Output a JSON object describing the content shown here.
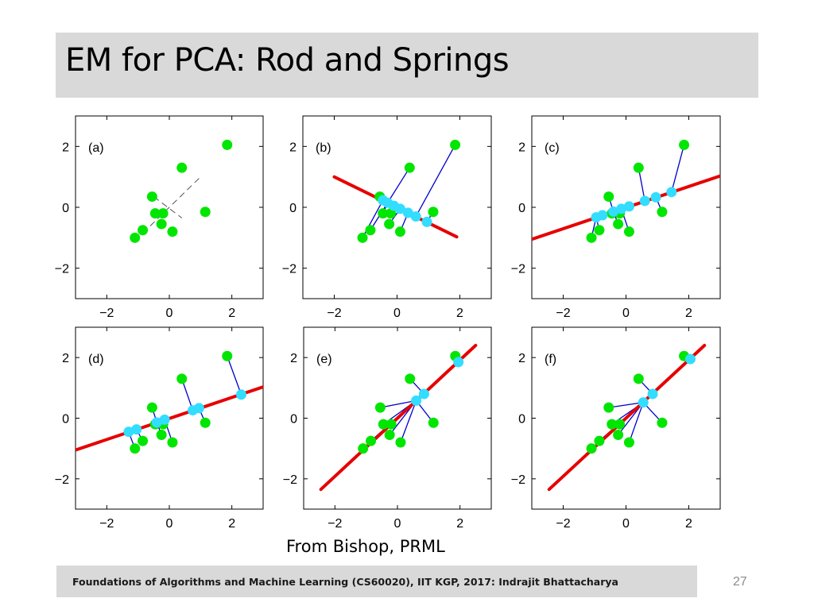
{
  "slide": {
    "title": "EM for PCA: Rod and Springs",
    "caption": "From Bishop, PRML",
    "footer": "Foundations of Algorithms and Machine Learning (CS60020), IIT KGP, 2017: Indrajit Bhattacharya",
    "page_number": "27"
  },
  "colors": {
    "data_point": "#00e600",
    "projection": "#33ddff",
    "rod": "#e60000",
    "spring": "#0000cc",
    "axis": "#000000"
  },
  "chart_data": [
    {
      "type": "scatter",
      "label": "(a)",
      "xlim": [
        -3,
        3
      ],
      "ylim": [
        -3,
        3
      ],
      "xticks": [
        -2,
        0,
        2
      ],
      "yticks": [
        -2,
        0,
        2
      ],
      "points": [
        [
          -1.1,
          -1
        ],
        [
          -0.85,
          -0.75
        ],
        [
          -0.55,
          0.35
        ],
        [
          -0.45,
          -0.2
        ],
        [
          -0.2,
          -0.2
        ],
        [
          -0.25,
          -0.55
        ],
        [
          0.1,
          -0.8
        ],
        [
          0.4,
          1.3
        ],
        [
          1.15,
          -0.15
        ],
        [
          1.85,
          2.05
        ]
      ],
      "dashed_lines": [
        [
          [
            -0.85,
            -0.85
          ],
          [
            0.95,
            0.95
          ]
        ],
        [
          [
            -0.5,
            0.35
          ],
          [
            0.4,
            -0.35
          ]
        ]
      ],
      "rod": null,
      "projections": []
    },
    {
      "type": "scatter",
      "label": "(b)",
      "xlim": [
        -3,
        3
      ],
      "ylim": [
        -3,
        3
      ],
      "xticks": [
        -2,
        0,
        2
      ],
      "yticks": [
        -2,
        0,
        2
      ],
      "points": [
        [
          -1.1,
          -1
        ],
        [
          -0.85,
          -0.75
        ],
        [
          -0.55,
          0.35
        ],
        [
          -0.45,
          -0.2
        ],
        [
          -0.2,
          -0.2
        ],
        [
          -0.25,
          -0.55
        ],
        [
          0.1,
          -0.8
        ],
        [
          0.4,
          1.3
        ],
        [
          1.15,
          -0.15
        ],
        [
          1.85,
          2.05
        ]
      ],
      "dashed_lines": [],
      "rod": [
        [
          -2,
          1
        ],
        [
          1.9,
          -0.97
        ]
      ],
      "projections": [
        [
          -0.45,
          0.23
        ],
        [
          -0.3,
          0.15
        ],
        [
          -0.1,
          0.05
        ],
        [
          0.1,
          -0.05
        ],
        [
          0.35,
          -0.18
        ],
        [
          0.6,
          -0.3
        ],
        [
          0.95,
          -0.48
        ]
      ]
    },
    {
      "type": "scatter",
      "label": "(c)",
      "xlim": [
        -3,
        3
      ],
      "ylim": [
        -3,
        3
      ],
      "xticks": [
        -2,
        0,
        2
      ],
      "yticks": [
        -2,
        0,
        2
      ],
      "points": [
        [
          -1.1,
          -1
        ],
        [
          -0.85,
          -0.75
        ],
        [
          -0.55,
          0.35
        ],
        [
          -0.45,
          -0.2
        ],
        [
          -0.2,
          -0.2
        ],
        [
          -0.25,
          -0.55
        ],
        [
          0.1,
          -0.8
        ],
        [
          0.4,
          1.3
        ],
        [
          1.15,
          -0.15
        ],
        [
          1.85,
          2.05
        ]
      ],
      "dashed_lines": [],
      "rod": [
        [
          -3,
          -1.05
        ],
        [
          3,
          1.03
        ]
      ],
      "projections": [
        [
          -0.95,
          -0.33
        ],
        [
          -0.75,
          -0.26
        ],
        [
          -0.4,
          -0.14
        ],
        [
          -0.15,
          -0.05
        ],
        [
          0.1,
          0.03
        ],
        [
          0.6,
          0.21
        ],
        [
          0.95,
          0.33
        ],
        [
          1.45,
          0.5
        ]
      ]
    },
    {
      "type": "scatter",
      "label": "(d)",
      "xlim": [
        -3,
        3
      ],
      "ylim": [
        -3,
        3
      ],
      "xticks": [
        -2,
        0,
        2
      ],
      "yticks": [
        -2,
        0,
        2
      ],
      "points": [
        [
          -1.1,
          -1
        ],
        [
          -0.85,
          -0.75
        ],
        [
          -0.55,
          0.35
        ],
        [
          -0.45,
          -0.2
        ],
        [
          -0.2,
          -0.2
        ],
        [
          -0.25,
          -0.55
        ],
        [
          0.1,
          -0.8
        ],
        [
          0.4,
          1.3
        ],
        [
          1.15,
          -0.15
        ],
        [
          1.85,
          2.05
        ]
      ],
      "dashed_lines": [],
      "rod": [
        [
          -3,
          -1.05
        ],
        [
          3,
          1.03
        ]
      ],
      "projections": [
        [
          -1.3,
          -0.45
        ],
        [
          -1.05,
          -0.37
        ],
        [
          -0.4,
          -0.14
        ],
        [
          -0.15,
          -0.05
        ],
        [
          0.75,
          0.26
        ],
        [
          0.95,
          0.33
        ],
        [
          2.3,
          0.78
        ]
      ]
    },
    {
      "type": "scatter",
      "label": "(e)",
      "xlim": [
        -3,
        3
      ],
      "ylim": [
        -3,
        3
      ],
      "xticks": [
        -2,
        0,
        2
      ],
      "yticks": [
        -2,
        0,
        2
      ],
      "points": [
        [
          -1.1,
          -1
        ],
        [
          -0.85,
          -0.75
        ],
        [
          -0.55,
          0.35
        ],
        [
          -0.45,
          -0.2
        ],
        [
          -0.2,
          -0.2
        ],
        [
          -0.25,
          -0.55
        ],
        [
          0.1,
          -0.8
        ],
        [
          0.4,
          1.3
        ],
        [
          1.15,
          -0.15
        ],
        [
          1.85,
          2.05
        ]
      ],
      "dashed_lines": [],
      "rod": [
        [
          -2.45,
          -2.35
        ],
        [
          2.5,
          2.4
        ]
      ],
      "projections": [
        [
          0.6,
          0.58
        ],
        [
          0.85,
          0.8
        ],
        [
          1.95,
          1.85
        ]
      ]
    },
    {
      "type": "scatter",
      "label": "(f)",
      "xlim": [
        -3,
        3
      ],
      "ylim": [
        -3,
        3
      ],
      "xticks": [
        -2,
        0,
        2
      ],
      "yticks": [
        -2,
        0,
        2
      ],
      "points": [
        [
          -1.1,
          -1
        ],
        [
          -0.85,
          -0.75
        ],
        [
          -0.55,
          0.35
        ],
        [
          -0.45,
          -0.2
        ],
        [
          -0.2,
          -0.2
        ],
        [
          -0.25,
          -0.55
        ],
        [
          0.1,
          -0.8
        ],
        [
          0.4,
          1.3
        ],
        [
          1.15,
          -0.15
        ],
        [
          1.85,
          2.05
        ]
      ],
      "dashed_lines": [],
      "rod": [
        [
          -2.45,
          -2.35
        ],
        [
          2.5,
          2.4
        ]
      ],
      "projections": [
        [
          0.55,
          0.52
        ],
        [
          0.85,
          0.8
        ],
        [
          2.05,
          1.95
        ]
      ]
    }
  ]
}
